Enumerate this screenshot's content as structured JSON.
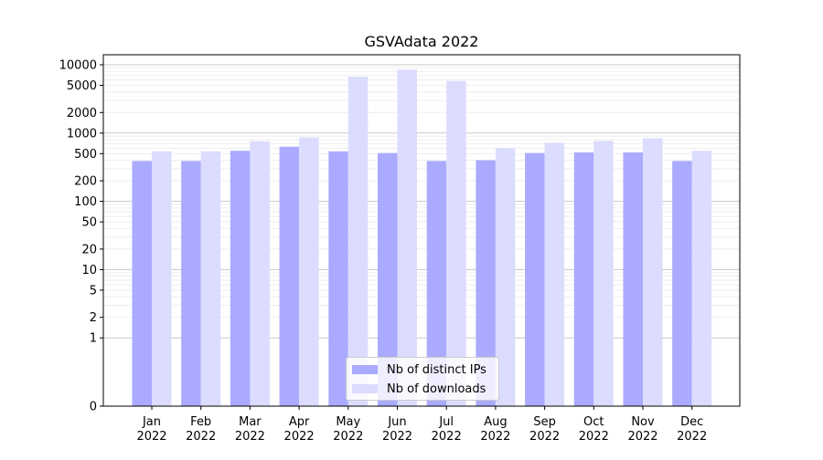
{
  "chart_data": {
    "type": "bar",
    "title": "GSVAdata 2022",
    "xlabel": "",
    "ylabel": "",
    "y_scale": "symlog",
    "ylim": [
      0,
      10000
    ],
    "y_tick_labels": [
      "0",
      "1",
      "2",
      "5",
      "10",
      "20",
      "50",
      "100",
      "200",
      "500",
      "1000",
      "2000",
      "5000",
      "10000"
    ],
    "categories": [
      "Jan\n2022",
      "Feb\n2022",
      "Mar\n2022",
      "Apr\n2022",
      "May\n2022",
      "Jun\n2022",
      "Jul\n2022",
      "Aug\n2022",
      "Sep\n2022",
      "Oct\n2022",
      "Nov\n2022",
      "Dec\n2022"
    ],
    "series": [
      {
        "name": "Nb of distinct IPs",
        "color": "#aaaaff",
        "values": [
          390,
          390,
          550,
          630,
          540,
          510,
          390,
          400,
          510,
          520,
          520,
          390
        ]
      },
      {
        "name": "Nb of downloads",
        "color": "#dcdcff",
        "values": [
          540,
          540,
          760,
          860,
          6700,
          8500,
          5800,
          600,
          720,
          770,
          840,
          550
        ]
      }
    ],
    "legend_position": "lower-center",
    "grid": true
  }
}
